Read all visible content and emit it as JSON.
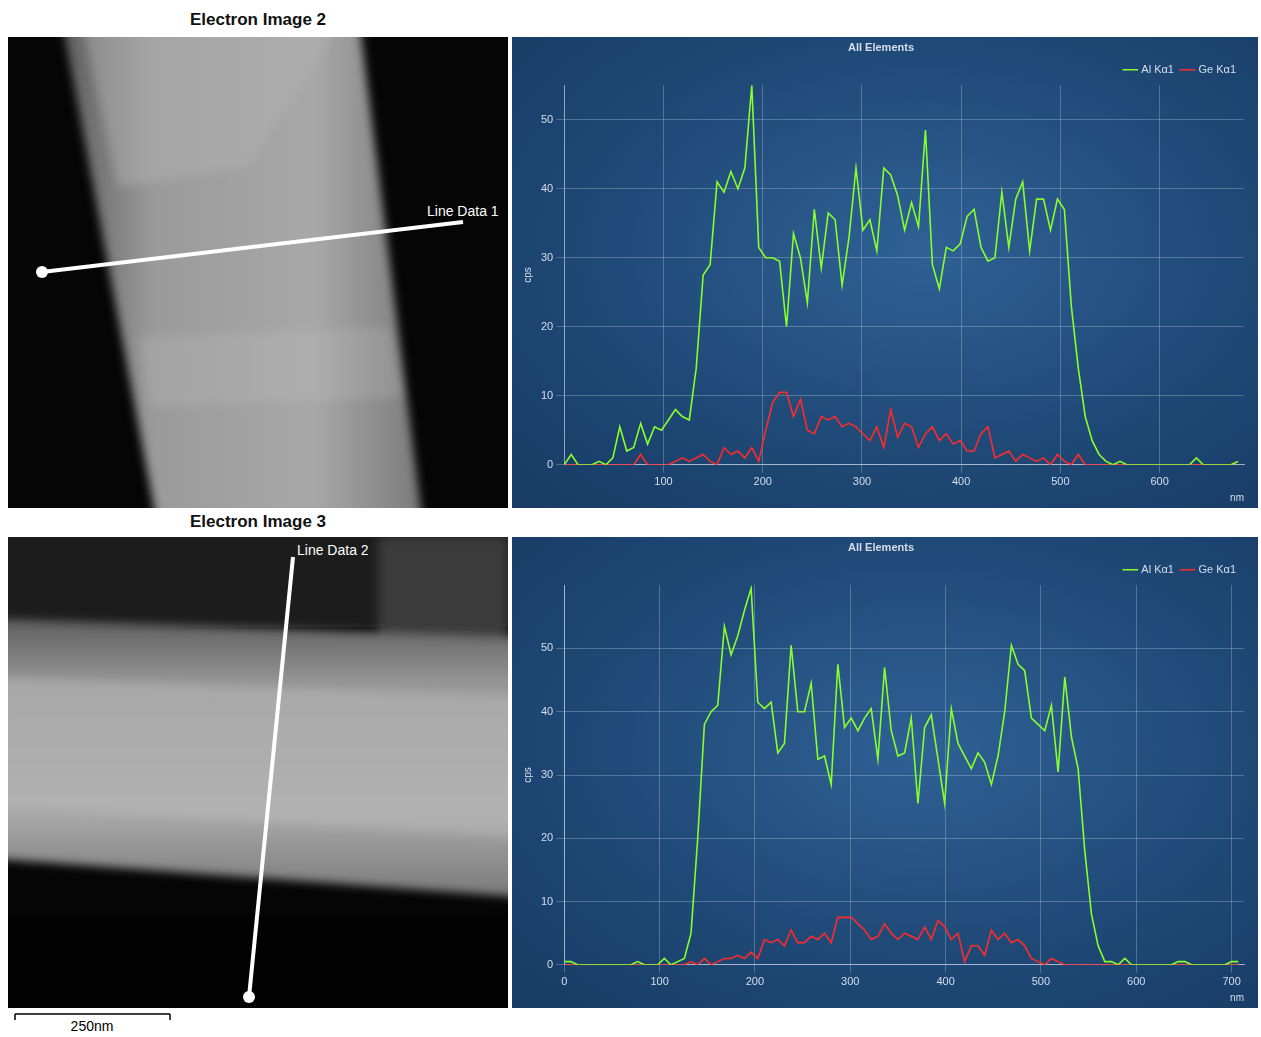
{
  "images": [
    {
      "title": "Electron Image 2",
      "line_label": "Line Data 1"
    },
    {
      "title": "Electron Image 3",
      "line_label": "Line Data 2"
    }
  ],
  "scale_bar": "250nm",
  "chart_data": [
    {
      "type": "line",
      "title": "All Elements",
      "x_label": "nm",
      "y_label": "cps",
      "x": [
        0,
        7,
        14,
        21,
        28,
        35,
        42,
        49,
        56,
        63,
        70,
        77,
        84,
        91,
        98,
        105,
        112,
        119,
        126,
        133,
        140,
        147,
        154,
        161,
        168,
        175,
        182,
        189,
        196,
        203,
        210,
        217,
        224,
        231,
        238,
        245,
        252,
        259,
        266,
        273,
        280,
        287,
        294,
        301,
        308,
        315,
        322,
        329,
        336,
        343,
        350,
        357,
        364,
        371,
        378,
        385,
        392,
        399,
        406,
        413,
        420,
        427,
        434,
        441,
        448,
        455,
        462,
        469,
        476,
        483,
        490,
        497,
        504,
        511,
        518,
        525,
        532,
        539,
        546,
        553,
        560,
        567,
        574,
        581,
        588,
        595,
        602,
        609,
        616,
        623,
        630,
        637,
        644,
        651,
        658,
        665,
        672,
        679
      ],
      "series": [
        {
          "name": "Al Kα1",
          "color": "#86ff2c",
          "values": [
            0,
            1.5,
            0,
            0,
            0,
            0.5,
            0,
            1,
            5.5,
            2,
            2.5,
            6,
            3,
            5.5,
            5,
            6.5,
            8,
            7,
            6.5,
            14,
            27.5,
            29,
            41,
            39.5,
            42.5,
            40,
            43,
            55,
            31.5,
            30,
            30,
            29.5,
            20,
            33.5,
            30,
            23.5,
            37,
            28.5,
            36.5,
            35.5,
            26,
            33,
            43,
            34,
            35.5,
            31,
            43,
            42,
            39,
            34,
            38,
            34.5,
            48.5,
            29,
            25.5,
            31.5,
            31,
            32,
            36,
            37,
            31.5,
            29.5,
            30,
            39.5,
            31.5,
            38.5,
            41,
            31,
            38.5,
            38.5,
            34,
            38.5,
            37,
            23,
            14,
            7,
            3.5,
            1.5,
            0.5,
            0,
            0.5,
            0,
            0,
            0,
            0,
            0,
            0,
            0,
            0,
            0,
            0,
            1,
            0,
            0,
            0,
            0,
            0,
            0.5
          ]
        },
        {
          "name": "Ge Kα1",
          "color": "#ff2b2b",
          "values": [
            0,
            0,
            0,
            0,
            0,
            0,
            0,
            0,
            0,
            0,
            0,
            1.5,
            0,
            0,
            0,
            0,
            0.5,
            1,
            0.5,
            1,
            1.5,
            0.5,
            0,
            2.5,
            1.5,
            2,
            1,
            2.5,
            0.5,
            5,
            9,
            10.5,
            10.5,
            7,
            9.5,
            5,
            4.5,
            7,
            6.5,
            7,
            5.5,
            6,
            5.5,
            4.5,
            3.5,
            5.5,
            2.5,
            8,
            4,
            6,
            5.5,
            2.5,
            4.5,
            5.5,
            3.5,
            4.5,
            3,
            3.5,
            2,
            2,
            4.5,
            5.5,
            1,
            1.5,
            2,
            0.5,
            1.5,
            1,
            0.5,
            1,
            0,
            1.5,
            0.5,
            0,
            1.5,
            0,
            0,
            0,
            0,
            0,
            0,
            0,
            0,
            0,
            0,
            0,
            0,
            0,
            0,
            0,
            0,
            0,
            0,
            0,
            0,
            0,
            0,
            0.5
          ]
        }
      ],
      "xlim": [
        0,
        685
      ],
      "xticks": [
        100,
        200,
        300,
        400,
        500,
        600
      ],
      "ylim": [
        0,
        55
      ],
      "yticks": [
        0,
        10,
        20,
        30,
        40,
        50
      ],
      "grid": true,
      "legend": "top right"
    },
    {
      "type": "line",
      "title": "All Elements",
      "x_label": "nm",
      "y_label": "cps",
      "x": [
        0,
        7,
        14,
        21,
        28,
        35,
        42,
        49,
        56,
        63,
        70,
        77,
        84,
        91,
        98,
        105,
        112,
        119,
        126,
        133,
        140,
        147,
        154,
        161,
        168,
        175,
        182,
        189,
        196,
        203,
        210,
        217,
        224,
        231,
        238,
        245,
        252,
        259,
        266,
        273,
        280,
        287,
        294,
        301,
        308,
        315,
        322,
        329,
        336,
        343,
        350,
        357,
        364,
        371,
        378,
        385,
        392,
        399,
        406,
        413,
        420,
        427,
        434,
        441,
        448,
        455,
        462,
        469,
        476,
        483,
        490,
        497,
        504,
        511,
        518,
        525,
        532,
        539,
        546,
        553,
        560,
        567,
        574,
        581,
        588,
        595,
        602,
        609,
        616,
        623,
        630,
        637,
        644,
        651,
        658,
        665,
        672,
        679,
        686,
        693,
        700,
        707
      ],
      "series": [
        {
          "name": "Al Kα1",
          "color": "#86ff2c",
          "values": [
            0.5,
            0.5,
            0,
            0,
            0,
            0,
            0,
            0,
            0,
            0,
            0,
            0.5,
            0,
            0,
            0,
            1,
            0,
            0.5,
            1,
            5,
            20,
            38,
            40,
            41,
            53.5,
            49,
            52,
            56,
            59.5,
            41.5,
            40.5,
            41.5,
            33.5,
            35,
            50.5,
            40,
            40,
            44.5,
            32.5,
            33,
            28.5,
            47.5,
            37.5,
            39,
            37,
            39,
            40.5,
            32.5,
            47,
            37,
            33,
            33.5,
            39,
            25.5,
            37.5,
            39.5,
            32.5,
            25.5,
            40.5,
            35,
            33,
            31,
            33.5,
            32,
            28.5,
            33,
            40,
            50.5,
            47.5,
            46.5,
            39,
            38,
            37,
            41,
            30.5,
            45.5,
            36,
            31,
            18,
            8,
            3,
            0.5,
            0.5,
            0,
            1,
            0,
            0,
            0,
            0,
            0,
            0,
            0,
            0.5,
            0.5,
            0,
            0,
            0,
            0,
            0,
            0,
            0.5,
            0.5
          ]
        },
        {
          "name": "Ge Kα1",
          "color": "#ff2b2b",
          "values": [
            0,
            0,
            0,
            0,
            0,
            0,
            0,
            0,
            0,
            0,
            0,
            0,
            0,
            0,
            0,
            0,
            0,
            0,
            0,
            0.5,
            0,
            1,
            0,
            0.5,
            1,
            1,
            1.5,
            1,
            2,
            1,
            4,
            3.5,
            4,
            3,
            5.5,
            3.5,
            3.5,
            4.5,
            4,
            5,
            3.5,
            7.5,
            7.5,
            7.5,
            6.5,
            5.5,
            4,
            4.5,
            6.5,
            5,
            4,
            5,
            4.5,
            4,
            6,
            4,
            7,
            6,
            4,
            5,
            0.5,
            3,
            3,
            1.5,
            5.5,
            4,
            5,
            3.5,
            4,
            3,
            1,
            0.5,
            0,
            1,
            0.5,
            0,
            0,
            0,
            0,
            0,
            0,
            0,
            0,
            0,
            0,
            0,
            0,
            0,
            0,
            0,
            0,
            0,
            0,
            0,
            0,
            0,
            0,
            0,
            0,
            0,
            0,
            0
          ]
        }
      ],
      "xlim": [
        0,
        713
      ],
      "xticks": [
        0,
        100,
        200,
        300,
        400,
        500,
        600,
        700
      ],
      "ylim": [
        0,
        60
      ],
      "yticks": [
        0,
        10,
        20,
        30,
        40,
        50
      ],
      "grid": true,
      "legend": "top right"
    }
  ]
}
